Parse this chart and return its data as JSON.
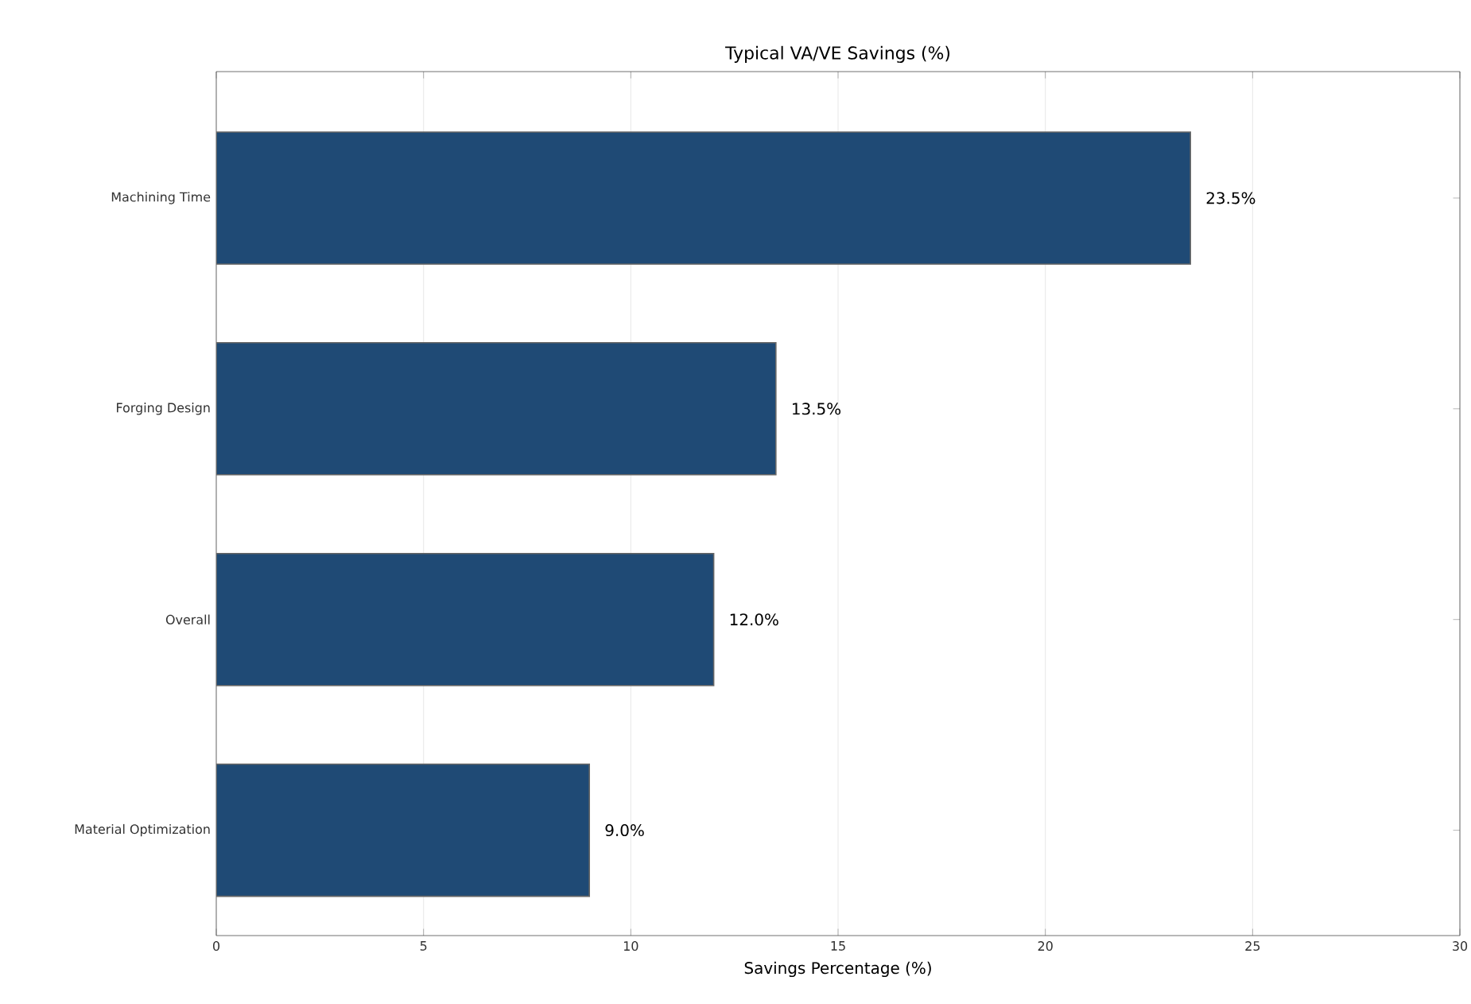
{
  "chart_data": {
    "type": "bar",
    "orientation": "horizontal",
    "title": "Typical VA/VE Savings (%)",
    "xlabel": "Savings Percentage (%)",
    "categories": [
      "Machining Time",
      "Forging Design",
      "Overall",
      "Material Optimization"
    ],
    "values": [
      23.5,
      13.5,
      12.0,
      9.0
    ],
    "value_labels": [
      "23.5%",
      "13.5%",
      "12.0%",
      "9.0%"
    ],
    "color": "#1f4a75",
    "xlim": [
      0,
      30
    ],
    "xticks": [
      0,
      5,
      10,
      15,
      20,
      25,
      30
    ],
    "grid": "x"
  }
}
